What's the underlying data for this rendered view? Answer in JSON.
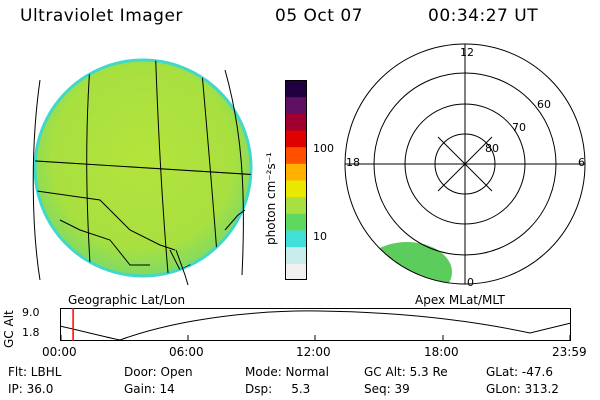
{
  "header": {
    "instrument": "Ultraviolet Imager",
    "date": "05 Oct 07",
    "time": "00:34:27 UT"
  },
  "panels": {
    "left_caption": "Geographic Lat/Lon",
    "right_caption": "Apex MLat/MLT"
  },
  "colorbar": {
    "unit_label": "photon cm⁻²s⁻¹",
    "ticks": [
      {
        "label": "100",
        "value": 100
      },
      {
        "label": "10",
        "value": 10
      }
    ],
    "colors": [
      "#f0f0f0",
      "#c8ecec",
      "#40e0d8",
      "#60d860",
      "#a8e040",
      "#e8e800",
      "#ffb000",
      "#ff5000",
      "#e00000",
      "#a00030",
      "#601060",
      "#200040"
    ]
  },
  "polar_plot": {
    "mlt_labels": [
      {
        "label": "12",
        "pos": "top"
      },
      {
        "label": "18",
        "pos": "left"
      },
      {
        "label": "6",
        "pos": "right"
      },
      {
        "label": "0",
        "pos": "bottom"
      }
    ],
    "lat_labels": [
      "60",
      "70",
      "80"
    ]
  },
  "altitude_plot": {
    "axis_label": "GC Alt",
    "y_ticks": [
      "9.0",
      "1.8"
    ],
    "x_ticks": [
      "00:00",
      "06:00",
      "12:00",
      "18:00",
      "23:59"
    ],
    "current_time_marker_hours": 0.57,
    "marker_color": "#ff0000"
  },
  "status": {
    "flt": "Flt: LBHL",
    "ip": "IP: 36.0",
    "door": "Door: Open",
    "gain": "Gain: 14",
    "mode": "Mode: Normal",
    "dsp": "Dsp:     5.3",
    "gcalt": "GC Alt: 5.3 Re",
    "seq": "Seq: 39",
    "glat": "GLat: -47.6",
    "glon": "GLon: 313.2"
  }
}
